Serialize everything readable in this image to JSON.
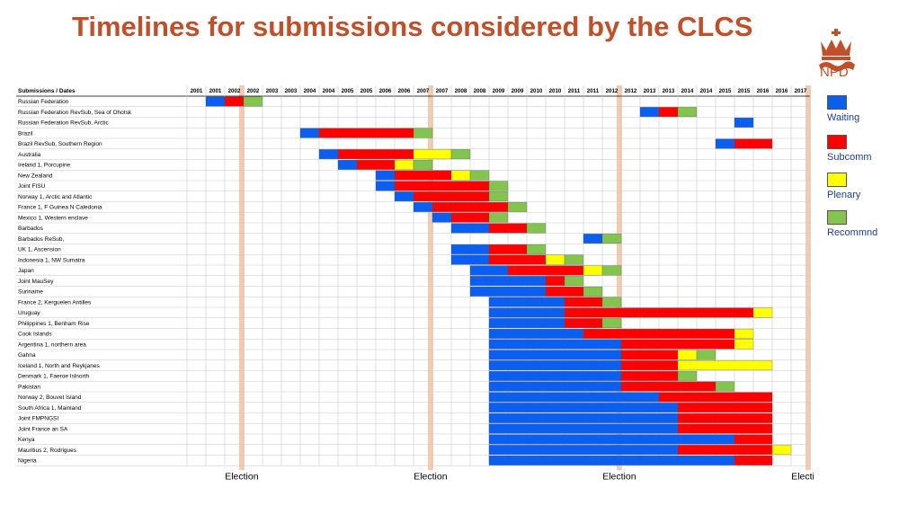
{
  "title": "Timelines for submissions considered by the CLCS",
  "logo": {
    "text": "NPD"
  },
  "colors": {
    "title": "#c0502b",
    "waiting": "#0a5ff0",
    "subcomm": "#ff0000",
    "plenary": "#ffff00",
    "recommnd": "#82c44e",
    "election_band": "#f4cbb0"
  },
  "chart_data": {
    "type": "timeline",
    "header_label": "Submissions / Dates",
    "columns": [
      "2001",
      "2001",
      "2002",
      "2002",
      "2003",
      "2003",
      "2004",
      "2004",
      "2005",
      "2005",
      "2006",
      "2006",
      "2007",
      "2007",
      "2008",
      "2008",
      "2009",
      "2009",
      "2010",
      "2010",
      "2011",
      "2011",
      "2012",
      "2012",
      "2013",
      "2013",
      "2014",
      "2014",
      "2015",
      "2015",
      "2016",
      "2016",
      "2017"
    ],
    "elections": [
      {
        "label": "Election",
        "col": 2.9
      },
      {
        "label": "Election",
        "col": 12.9
      },
      {
        "label": "Election",
        "col": 22.9
      },
      {
        "label": "Election",
        "col": 32.9
      }
    ],
    "legend": [
      {
        "label": "Waiting",
        "status": "waiting"
      },
      {
        "label": "Subcomm",
        "status": "subcomm"
      },
      {
        "label": "Plenary",
        "status": "plenary"
      },
      {
        "label": "Recommnd",
        "status": "recommnd"
      }
    ],
    "rows": [
      {
        "label": "Russian Federation",
        "segments": [
          [
            "waiting",
            1,
            2
          ],
          [
            "subcomm",
            2,
            3
          ],
          [
            "recommnd",
            3,
            4
          ]
        ]
      },
      {
        "label": "Russian Federation RevSub, Sea of Ohotsk",
        "segments": [
          [
            "waiting",
            24,
            25
          ],
          [
            "subcomm",
            25,
            26
          ],
          [
            "recommnd",
            26,
            27
          ]
        ]
      },
      {
        "label": "Russian Federation RevSub, Arctic",
        "segments": [
          [
            "waiting",
            29,
            30
          ]
        ]
      },
      {
        "label": "Brazil",
        "segments": [
          [
            "waiting",
            6,
            7
          ],
          [
            "subcomm",
            7,
            12
          ],
          [
            "recommnd",
            12,
            13
          ]
        ]
      },
      {
        "label": "Brazil RevSub, Southern Region",
        "segments": [
          [
            "waiting",
            28,
            29
          ],
          [
            "subcomm",
            29,
            31
          ]
        ]
      },
      {
        "label": "Australia",
        "segments": [
          [
            "waiting",
            7,
            8
          ],
          [
            "subcomm",
            8,
            12
          ],
          [
            "plenary",
            12,
            14
          ],
          [
            "recommnd",
            14,
            15
          ]
        ]
      },
      {
        "label": "Ireland 1, Porcupine",
        "segments": [
          [
            "waiting",
            8,
            9
          ],
          [
            "subcomm",
            9,
            11
          ],
          [
            "plenary",
            11,
            12
          ],
          [
            "recommnd",
            12,
            13
          ]
        ]
      },
      {
        "label": "New Zealand",
        "segments": [
          [
            "waiting",
            10,
            11
          ],
          [
            "subcomm",
            11,
            14
          ],
          [
            "plenary",
            14,
            15
          ],
          [
            "recommnd",
            15,
            16
          ]
        ]
      },
      {
        "label": "Joint FISU",
        "segments": [
          [
            "waiting",
            10,
            11
          ],
          [
            "subcomm",
            11,
            16
          ],
          [
            "recommnd",
            16,
            17
          ]
        ]
      },
      {
        "label": "Norway 1, Arctic and Atlantic",
        "segments": [
          [
            "waiting",
            11,
            12
          ],
          [
            "subcomm",
            12,
            16
          ],
          [
            "recommnd",
            16,
            17
          ]
        ]
      },
      {
        "label": "France 1, F Guinea N Caledonia",
        "segments": [
          [
            "waiting",
            12,
            13
          ],
          [
            "subcomm",
            13,
            17
          ],
          [
            "recommnd",
            17,
            18
          ]
        ]
      },
      {
        "label": "Mexico 1, Western enclave",
        "segments": [
          [
            "waiting",
            13,
            14
          ],
          [
            "subcomm",
            14,
            16
          ],
          [
            "recommnd",
            16,
            17
          ]
        ]
      },
      {
        "label": "Barbados",
        "segments": [
          [
            "waiting",
            14,
            16
          ],
          [
            "subcomm",
            16,
            18
          ],
          [
            "recommnd",
            18,
            19
          ]
        ]
      },
      {
        "label": "Barbados ReSub,",
        "segments": [
          [
            "waiting",
            21,
            22
          ],
          [
            "recommnd",
            22,
            23
          ]
        ]
      },
      {
        "label": "UK 1, Ascension",
        "segments": [
          [
            "waiting",
            14,
            16
          ],
          [
            "subcomm",
            16,
            18
          ],
          [
            "recommnd",
            18,
            19
          ]
        ]
      },
      {
        "label": "Indonesia 1, NW Sumatra",
        "segments": [
          [
            "waiting",
            14,
            16
          ],
          [
            "subcomm",
            16,
            19
          ],
          [
            "plenary",
            19,
            20
          ],
          [
            "recommnd",
            20,
            21
          ]
        ]
      },
      {
        "label": "Japan",
        "segments": [
          [
            "waiting",
            15,
            17
          ],
          [
            "subcomm",
            17,
            21
          ],
          [
            "plenary",
            21,
            22
          ],
          [
            "recommnd",
            22,
            23
          ]
        ]
      },
      {
        "label": "Joint MauSey",
        "segments": [
          [
            "waiting",
            15,
            19
          ],
          [
            "subcomm",
            19,
            20
          ],
          [
            "recommnd",
            20,
            21
          ]
        ]
      },
      {
        "label": "Suriname",
        "segments": [
          [
            "waiting",
            15,
            19
          ],
          [
            "subcomm",
            19,
            21
          ],
          [
            "recommnd",
            21,
            22
          ]
        ]
      },
      {
        "label": "France 2, Kerguelen Antilles",
        "segments": [
          [
            "waiting",
            16,
            20
          ],
          [
            "subcomm",
            20,
            22
          ],
          [
            "recommnd",
            22,
            23
          ]
        ]
      },
      {
        "label": "Uruguay",
        "segments": [
          [
            "waiting",
            16,
            20
          ],
          [
            "subcomm",
            20,
            30
          ],
          [
            "plenary",
            30,
            31
          ]
        ]
      },
      {
        "label": "Philippines 1, Benham Rise",
        "segments": [
          [
            "waiting",
            16,
            20
          ],
          [
            "subcomm",
            20,
            22
          ],
          [
            "recommnd",
            22,
            23
          ]
        ]
      },
      {
        "label": "Cook Islands",
        "segments": [
          [
            "waiting",
            16,
            21
          ],
          [
            "subcomm",
            21,
            29
          ],
          [
            "plenary",
            29,
            30
          ]
        ]
      },
      {
        "label": "Argentina 1, northern area",
        "segments": [
          [
            "waiting",
            16,
            23
          ],
          [
            "subcomm",
            23,
            29
          ],
          [
            "plenary",
            29,
            30
          ]
        ]
      },
      {
        "label": "Gahna",
        "segments": [
          [
            "waiting",
            16,
            23
          ],
          [
            "subcomm",
            23,
            26
          ],
          [
            "plenary",
            26,
            27
          ],
          [
            "recommnd",
            27,
            28
          ]
        ]
      },
      {
        "label": "Iceland 1, North and Reykjanes",
        "segments": [
          [
            "waiting",
            16,
            23
          ],
          [
            "subcomm",
            23,
            26
          ],
          [
            "plenary",
            26,
            31
          ]
        ]
      },
      {
        "label": "Denmark 1, Faeroe Islnorth",
        "segments": [
          [
            "waiting",
            16,
            23
          ],
          [
            "subcomm",
            23,
            26
          ],
          [
            "recommnd",
            26,
            27
          ]
        ]
      },
      {
        "label": "Pakistan",
        "segments": [
          [
            "waiting",
            16,
            23
          ],
          [
            "subcomm",
            23,
            28
          ],
          [
            "recommnd",
            28,
            29
          ]
        ]
      },
      {
        "label": "Norway 2, Bouvet Island",
        "segments": [
          [
            "waiting",
            16,
            25
          ],
          [
            "subcomm",
            25,
            31
          ]
        ]
      },
      {
        "label": "South Africa 1, Mainland",
        "segments": [
          [
            "waiting",
            16,
            26
          ],
          [
            "subcomm",
            26,
            31
          ]
        ]
      },
      {
        "label": "Joint FMPNGSI",
        "segments": [
          [
            "waiting",
            16,
            26
          ],
          [
            "subcomm",
            26,
            31
          ]
        ]
      },
      {
        "label": "Joint France an SA",
        "segments": [
          [
            "waiting",
            16,
            26
          ],
          [
            "subcomm",
            26,
            31
          ]
        ]
      },
      {
        "label": "Kenya",
        "segments": [
          [
            "waiting",
            16,
            29
          ],
          [
            "subcomm",
            29,
            31
          ]
        ]
      },
      {
        "label": "Mauritius 2, Rodrigues",
        "segments": [
          [
            "waiting",
            16,
            26
          ],
          [
            "subcomm",
            26,
            31
          ],
          [
            "plenary",
            31,
            32
          ]
        ]
      },
      {
        "label": "Nigeria",
        "segments": [
          [
            "waiting",
            16,
            29
          ],
          [
            "subcomm",
            29,
            31
          ]
        ]
      }
    ]
  }
}
